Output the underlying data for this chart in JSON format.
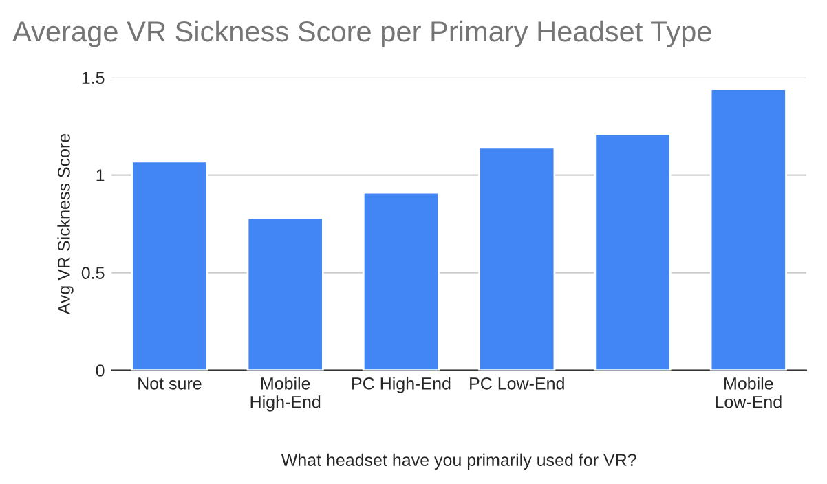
{
  "chart_data": {
    "type": "bar",
    "title": "Average VR Sickness Score per Primary Headset Type",
    "categories": [
      "Not sure",
      "Mobile\nHigh-End",
      "PC High-End",
      "PC Low-End",
      null,
      "Mobile\nLow-End"
    ],
    "values": [
      1.07,
      0.78,
      0.91,
      1.14,
      1.21,
      1.44
    ],
    "color": "#4285f4",
    "xlabel": "What headset have you primarily used for VR?",
    "ylabel": "Avg VR Sickness Score",
    "ylim": [
      0,
      1.5
    ],
    "yticks": [
      0,
      0.5,
      1,
      1.5
    ],
    "grid": "y"
  }
}
